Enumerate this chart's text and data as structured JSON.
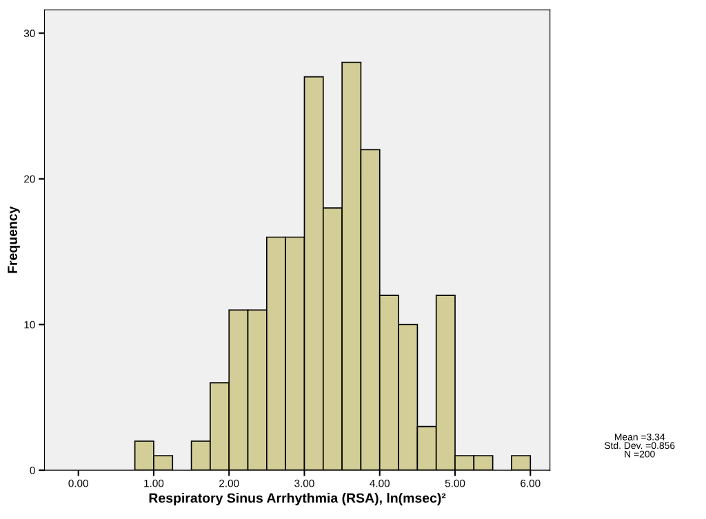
{
  "chart_data": {
    "type": "histogram",
    "xlabel": "Respiratory Sinus Arrhythmia (RSA), ln(msec)²",
    "ylabel": "Frequency",
    "bins": [
      0.75,
      1.0,
      1.25,
      1.5,
      1.75,
      2.0,
      2.25,
      2.5,
      2.75,
      3.0,
      3.25,
      3.5,
      3.75,
      4.0,
      4.25,
      4.5,
      4.75,
      5.0,
      5.25,
      5.5,
      5.75,
      6.0
    ],
    "values": [
      2,
      1,
      0,
      2,
      6,
      11,
      11,
      16,
      16,
      27,
      18,
      28,
      22,
      12,
      10,
      3,
      12,
      1,
      1,
      0,
      1
    ],
    "color": "#d3ce97",
    "xlim": [
      -0.45,
      6.26
    ],
    "ylim": [
      0,
      31.6
    ],
    "xticks": [
      {
        "value": 0,
        "label": "0.00"
      },
      {
        "value": 1,
        "label": "1.00"
      },
      {
        "value": 2,
        "label": "2.00"
      },
      {
        "value": 3,
        "label": "3.00"
      },
      {
        "value": 4,
        "label": "4.00"
      },
      {
        "value": 5,
        "label": "5.00"
      },
      {
        "value": 6,
        "label": "6.00"
      }
    ],
    "yticks": [
      0,
      10,
      20,
      30
    ],
    "grid": false,
    "legend": false,
    "annotations": [
      "Mean =3.34\nStd. Dev. =0.856\nN =200"
    ]
  }
}
